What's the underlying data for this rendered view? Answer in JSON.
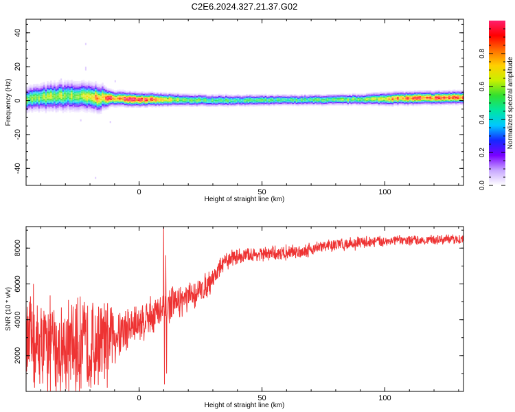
{
  "figure": {
    "title": "C2E6.2024.327.21.37.G02"
  },
  "chart_data": [
    {
      "type": "heatmap",
      "xlabel": "Height of straight line (km)",
      "ylabel": "Frequency (Hz)",
      "xlim": [
        -46,
        132
      ],
      "ylim": [
        -50,
        48
      ],
      "xticks": [
        0,
        50,
        100
      ],
      "yticks": [
        40,
        20,
        0,
        -20,
        -40
      ],
      "grid": false,
      "colorbar": {
        "label": "Normalized spectral amplitude",
        "range": [
          0,
          1
        ],
        "ticks": [
          "0.0",
          "0.2",
          "0.4",
          "0.6",
          "0.8"
        ],
        "colormap": [
          "#ffffff",
          "#c8a8ff",
          "#7a00ff",
          "#1428ff",
          "#00c8ff",
          "#00e6a0",
          "#30e030",
          "#c8f000",
          "#ffd000",
          "#ff7000",
          "#ff0000",
          "#ff1e6e"
        ]
      },
      "ridge_frequency_hz": [
        [
          -46,
          1.0
        ],
        [
          -40,
          1.6
        ],
        [
          -35,
          2.2
        ],
        [
          -30,
          2.6
        ],
        [
          -25,
          2.4
        ],
        [
          -20,
          1.8
        ],
        [
          -15,
          1.4
        ],
        [
          -10,
          1.2
        ],
        [
          -5,
          0.9
        ],
        [
          0,
          0.6
        ],
        [
          10,
          0.4
        ],
        [
          20,
          0.2
        ],
        [
          30,
          0.0
        ],
        [
          40,
          0.0
        ],
        [
          60,
          0.2
        ],
        [
          80,
          0.4
        ],
        [
          95,
          0.8
        ],
        [
          105,
          1.2
        ],
        [
          120,
          1.5
        ],
        [
          132,
          1.8
        ]
      ],
      "ridge_halfwidth_hz": [
        [
          -46,
          5.5
        ],
        [
          -30,
          6.5
        ],
        [
          -16,
          6.0
        ],
        [
          -12,
          3.5
        ],
        [
          0,
          3.2
        ],
        [
          20,
          2.8
        ],
        [
          40,
          2.6
        ],
        [
          60,
          2.4
        ],
        [
          90,
          2.5
        ],
        [
          100,
          3.0
        ],
        [
          132,
          3.0
        ]
      ],
      "peak_amplitude": [
        [
          -46,
          0.55
        ],
        [
          -35,
          0.62
        ],
        [
          -25,
          0.6
        ],
        [
          -14,
          0.85
        ],
        [
          -5,
          0.9
        ],
        [
          0,
          0.92
        ],
        [
          5,
          0.85
        ],
        [
          15,
          0.6
        ],
        [
          30,
          0.5
        ],
        [
          60,
          0.5
        ],
        [
          95,
          0.6
        ],
        [
          103,
          0.82
        ],
        [
          132,
          0.9
        ]
      ]
    },
    {
      "type": "line",
      "xlabel": "Height of straight line (km)",
      "ylabel": "SNR (10 * v/v)",
      "xlim": [
        -46,
        132
      ],
      "ylim": [
        0,
        9200
      ],
      "xticks": [
        0,
        50,
        100
      ],
      "yticks": [
        2000,
        4000,
        6000,
        8000
      ],
      "grid": false,
      "series": [
        {
          "color": "#ee3333",
          "envelope": [
            [
              -46,
              2600,
              2400
            ],
            [
              -40,
              2500,
              2500
            ],
            [
              -30,
              2400,
              2600
            ],
            [
              -20,
              2500,
              2500
            ],
            [
              -15,
              2800,
              2200
            ],
            [
              -10,
              3200,
              1700
            ],
            [
              -5,
              3500,
              1300
            ],
            [
              0,
              3800,
              1100
            ],
            [
              5,
              4300,
              1100
            ],
            [
              8,
              4400,
              1000
            ],
            [
              10,
              4400,
              1100
            ],
            [
              12,
              4800,
              900
            ],
            [
              20,
              5200,
              800
            ],
            [
              25,
              5600,
              700
            ],
            [
              28,
              6000,
              700
            ],
            [
              31,
              6500,
              600
            ],
            [
              34,
              7100,
              500
            ],
            [
              38,
              7500,
              450
            ],
            [
              45,
              7600,
              400
            ],
            [
              55,
              7700,
              400
            ],
            [
              65,
              7800,
              400
            ],
            [
              75,
              8100,
              350
            ],
            [
              90,
              8300,
              350
            ],
            [
              100,
              8400,
              300
            ],
            [
              115,
              8450,
              250
            ],
            [
              132,
              8500,
              250
            ]
          ],
          "spikes": [
            [
              -43,
              6000
            ],
            [
              -42.5,
              200
            ],
            [
              -37,
              4300
            ],
            [
              -24,
              5300
            ],
            [
              -19,
              4600
            ],
            [
              -13,
              200
            ],
            [
              10,
              9200
            ],
            [
              10.3,
              400
            ],
            [
              10.8,
              7600
            ],
            [
              11.2,
              1000
            ]
          ]
        }
      ]
    }
  ]
}
